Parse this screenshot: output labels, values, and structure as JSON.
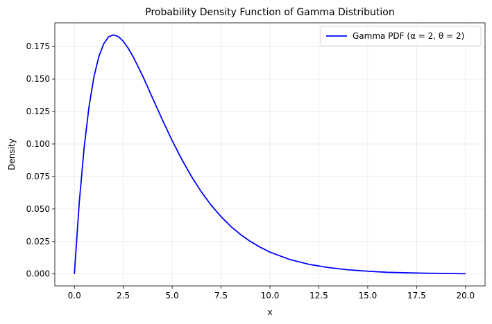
{
  "chart_data": {
    "type": "line",
    "title": "Probability Density Function of Gamma Distribution",
    "xlabel": "x",
    "ylabel": "Density",
    "xlim": [
      -1.0,
      21.0
    ],
    "ylim": [
      -0.0092,
      0.1932
    ],
    "x_ticks": [
      0.0,
      2.5,
      5.0,
      7.5,
      10.0,
      12.5,
      15.0,
      17.5,
      20.0
    ],
    "x_tick_labels": [
      "0.0",
      "2.5",
      "5.0",
      "7.5",
      "10.0",
      "12.5",
      "15.0",
      "17.5",
      "20.0"
    ],
    "y_ticks": [
      0.0,
      0.025,
      0.05,
      0.075,
      0.1,
      0.125,
      0.15,
      0.175
    ],
    "y_tick_labels": [
      "0.000",
      "0.025",
      "0.050",
      "0.075",
      "0.100",
      "0.125",
      "0.150",
      "0.175"
    ],
    "grid": true,
    "legend_position": "top-right",
    "series": [
      {
        "name": "Gamma PDF (α = 2, θ = 2)",
        "color": "#0000ff",
        "x": [
          0,
          0.25,
          0.5,
          0.75,
          1,
          1.25,
          1.5,
          1.75,
          2,
          2.25,
          2.5,
          2.75,
          3,
          3.5,
          4,
          4.5,
          5,
          5.5,
          6,
          6.5,
          7,
          7.5,
          8,
          8.5,
          9,
          9.5,
          10,
          11,
          12,
          13,
          14,
          15,
          16,
          17,
          18,
          19,
          20
        ],
        "y": [
          0,
          0.0551,
          0.0974,
          0.1289,
          0.1516,
          0.1672,
          0.1771,
          0.1825,
          0.1839,
          0.1826,
          0.179,
          0.1737,
          0.1673,
          0.1521,
          0.1353,
          0.1186,
          0.1026,
          0.088,
          0.0747,
          0.063,
          0.0528,
          0.0441,
          0.0366,
          0.0303,
          0.025,
          0.0206,
          0.0168,
          0.0112,
          0.0074,
          0.0049,
          0.0032,
          0.0021,
          0.0013,
          0.0009,
          0.0006,
          0.0004,
          0.0002
        ]
      }
    ]
  }
}
